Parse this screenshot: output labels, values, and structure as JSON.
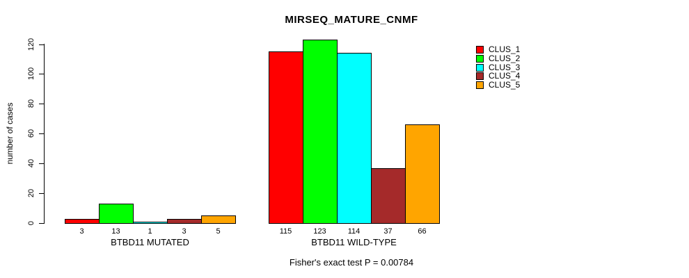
{
  "title": "MIRSEQ_MATURE_CNMF",
  "chart_data": {
    "type": "bar",
    "title": "MIRSEQ_MATURE_CNMF",
    "ylabel": "number of cases",
    "xlabel": "",
    "ylim": [
      0,
      120
    ],
    "yticks": [
      0,
      20,
      40,
      60,
      80,
      100,
      120
    ],
    "grid": false,
    "legend_position": "right",
    "bar_borders": "#000000",
    "categories": [
      "BTBD11 MUTATED",
      "BTBD11 WILD-TYPE"
    ],
    "series": [
      {
        "name": "CLUS_1",
        "color": "#FF0000",
        "values": [
          3,
          115
        ]
      },
      {
        "name": "CLUS_2",
        "color": "#00FF00",
        "values": [
          13,
          123
        ]
      },
      {
        "name": "CLUS_3",
        "color": "#00FFFF",
        "values": [
          1,
          114
        ]
      },
      {
        "name": "CLUS_4",
        "color": "#A52A2A",
        "values": [
          3,
          37
        ]
      },
      {
        "name": "CLUS_5",
        "color": "#FFA500",
        "values": [
          5,
          66
        ]
      }
    ],
    "bar_value_labels": {
      "BTBD11 MUTATED": [
        3,
        13,
        1,
        3,
        5
      ],
      "BTBD11 WILD-TYPE": [
        115,
        123,
        114,
        37,
        66
      ]
    },
    "annotation": "Fisher's exact test P = 0.00784"
  }
}
